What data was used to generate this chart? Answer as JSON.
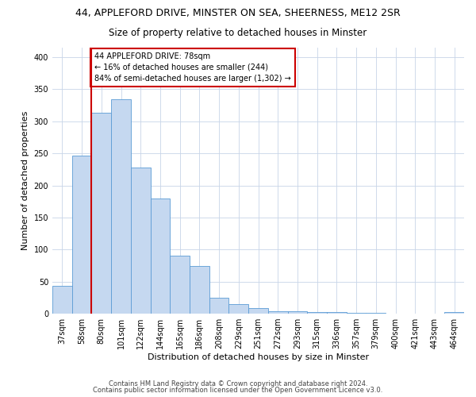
{
  "title_line1": "44, APPLEFORD DRIVE, MINSTER ON SEA, SHEERNESS, ME12 2SR",
  "title_line2": "Size of property relative to detached houses in Minster",
  "xlabel": "Distribution of detached houses by size in Minster",
  "ylabel": "Number of detached properties",
  "categories": [
    "37sqm",
    "58sqm",
    "80sqm",
    "101sqm",
    "122sqm",
    "144sqm",
    "165sqm",
    "186sqm",
    "208sqm",
    "229sqm",
    "251sqm",
    "272sqm",
    "293sqm",
    "315sqm",
    "336sqm",
    "357sqm",
    "379sqm",
    "400sqm",
    "421sqm",
    "443sqm",
    "464sqm"
  ],
  "values": [
    44,
    246,
    313,
    335,
    228,
    180,
    91,
    75,
    25,
    15,
    9,
    4,
    4,
    3,
    2,
    1,
    1,
    0,
    0,
    0,
    2
  ],
  "bar_color": "#c5d8f0",
  "bar_edge_color": "#5b9bd5",
  "marker_line_color": "#cc0000",
  "annotation_line1": "44 APPLEFORD DRIVE: 78sqm",
  "annotation_line2": "← 16% of detached houses are smaller (244)",
  "annotation_line3": "84% of semi-detached houses are larger (1,302) →",
  "annotation_box_color": "#ffffff",
  "annotation_box_edge_color": "#cc0000",
  "ylim": [
    0,
    415
  ],
  "yticks": [
    0,
    50,
    100,
    150,
    200,
    250,
    300,
    350,
    400
  ],
  "footer_line1": "Contains HM Land Registry data © Crown copyright and database right 2024.",
  "footer_line2": "Contains public sector information licensed under the Open Government Licence v3.0.",
  "background_color": "#ffffff",
  "grid_color": "#c8d4e8",
  "title_fontsize": 9,
  "subtitle_fontsize": 8.5,
  "tick_fontsize": 7,
  "ylabel_fontsize": 8,
  "xlabel_fontsize": 8,
  "footer_fontsize": 6,
  "annot_fontsize": 7
}
